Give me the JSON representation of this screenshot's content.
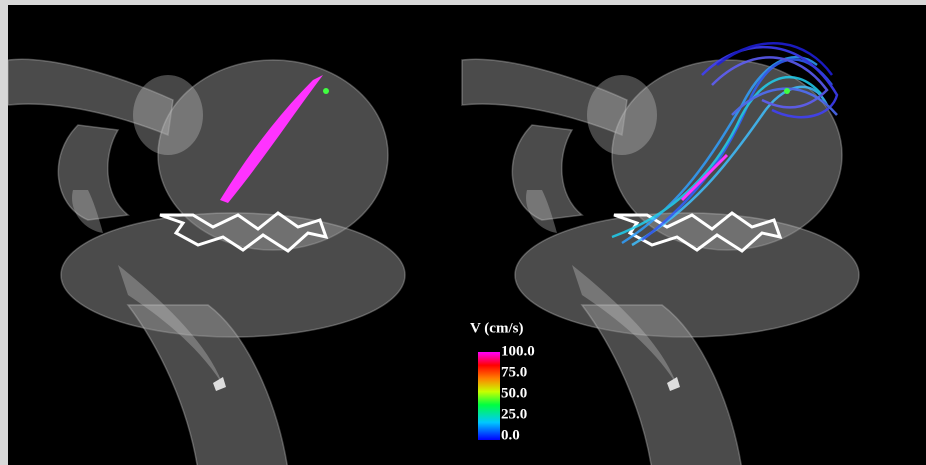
{
  "colorbar": {
    "title": "V (cm/s)",
    "labels": [
      "100.0",
      "75.0",
      "50.0",
      "25.0",
      "0.0"
    ]
  }
}
